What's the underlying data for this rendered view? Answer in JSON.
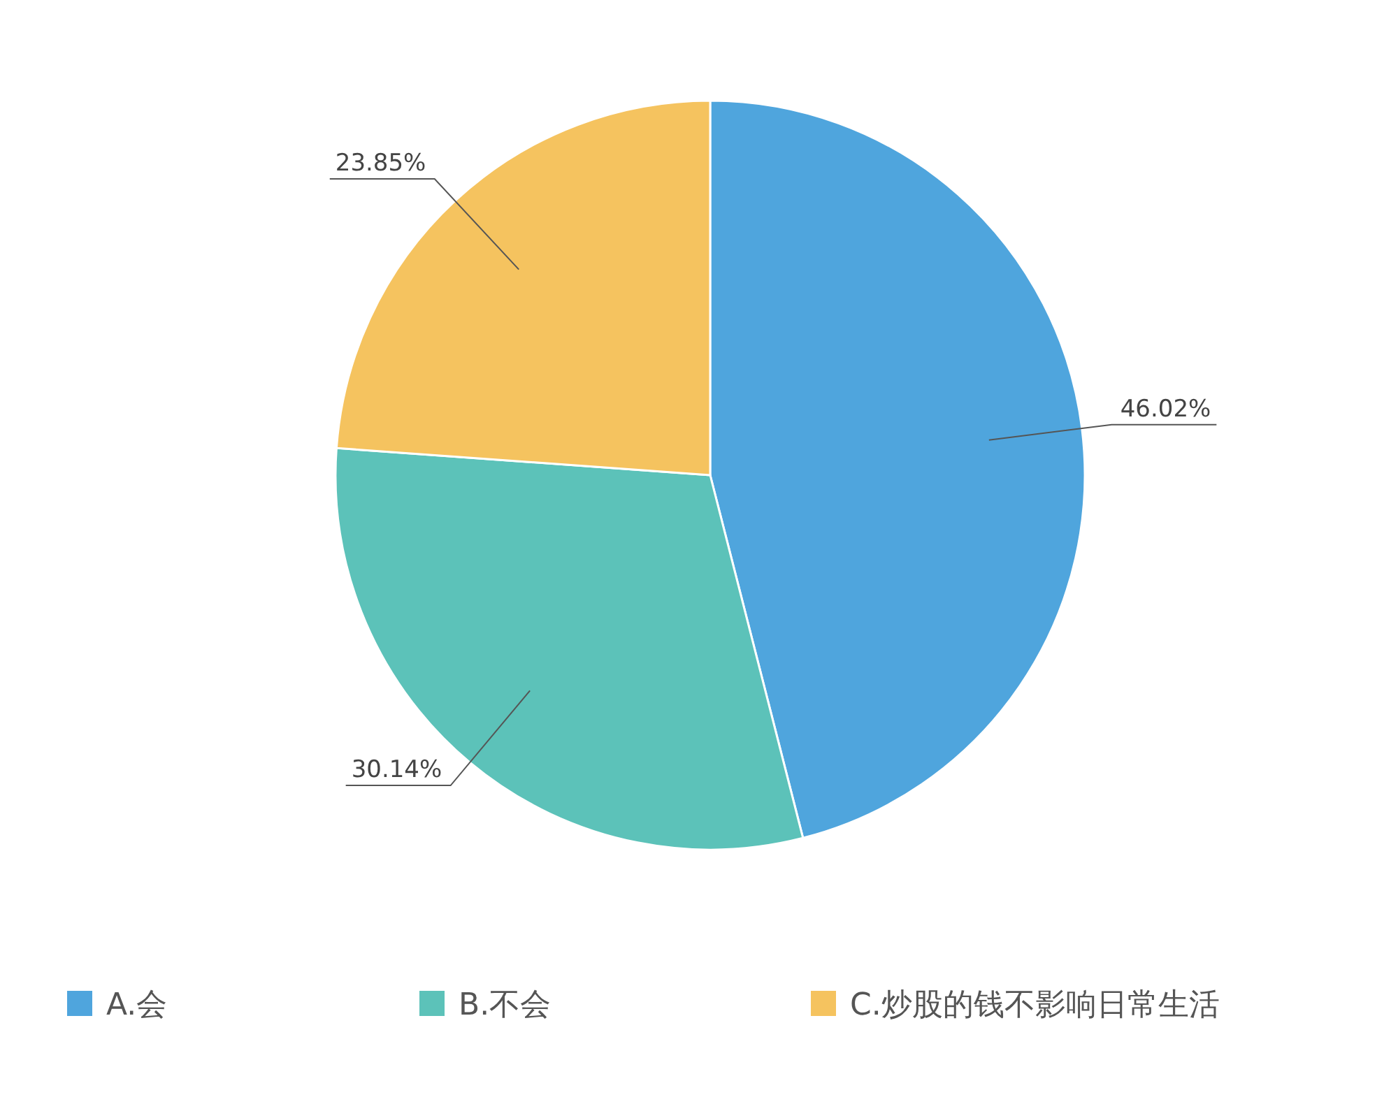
{
  "chart_data": {
    "type": "pie",
    "categories": [
      "A.会",
      "B.不会",
      "C.炒股的钱不影响日常生活"
    ],
    "values": [
      46.02,
      30.14,
      23.85
    ],
    "colors": [
      "#4fa5dd",
      "#5cc2b9",
      "#f5c35f"
    ],
    "value_labels": [
      "46.02%",
      "30.14%",
      "23.85%"
    ],
    "legend": "bottom"
  }
}
